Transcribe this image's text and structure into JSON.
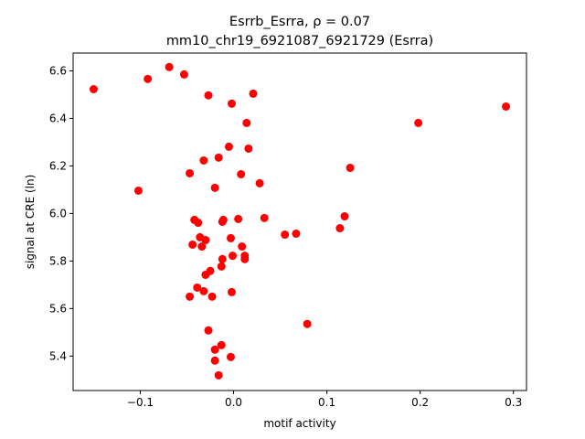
{
  "chart_data": {
    "type": "scatter",
    "title_line1": "Esrrb_Esrra, ρ = 0.07",
    "title_line2": "mm10_chr19_6921087_6921729 (Esrra)",
    "xlabel": "motif activity",
    "ylabel": "signal at CRE (ln)",
    "xlim": [
      -0.172,
      0.314
    ],
    "ylim": [
      5.255,
      6.675
    ],
    "x_ticks": [
      -0.1,
      0.0,
      0.1,
      0.2,
      0.3
    ],
    "x_tick_labels": [
      "−0.1",
      "0.0",
      "0.1",
      "0.2",
      "0.3"
    ],
    "y_ticks": [
      5.4,
      5.6,
      5.8,
      6.0,
      6.2,
      6.4,
      6.6
    ],
    "y_tick_labels": [
      "5.4",
      "5.6",
      "5.8",
      "6.0",
      "6.2",
      "6.4",
      "6.6"
    ],
    "grid": false,
    "marker_color": "#ff0000",
    "points": [
      {
        "x": -0.15,
        "y": 6.523
      },
      {
        "x": -0.092,
        "y": 6.566
      },
      {
        "x": -0.069,
        "y": 6.616
      },
      {
        "x": -0.053,
        "y": 6.585
      },
      {
        "x": -0.027,
        "y": 6.497
      },
      {
        "x": -0.002,
        "y": 6.462
      },
      {
        "x": 0.021,
        "y": 6.504
      },
      {
        "x": 0.014,
        "y": 6.381
      },
      {
        "x": 0.198,
        "y": 6.381
      },
      {
        "x": 0.292,
        "y": 6.45
      },
      {
        "x": -0.005,
        "y": 6.281
      },
      {
        "x": 0.016,
        "y": 6.273
      },
      {
        "x": -0.032,
        "y": 6.223
      },
      {
        "x": -0.016,
        "y": 6.235
      },
      {
        "x": -0.047,
        "y": 6.169
      },
      {
        "x": 0.008,
        "y": 6.165
      },
      {
        "x": 0.125,
        "y": 6.192
      },
      {
        "x": -0.102,
        "y": 6.096
      },
      {
        "x": -0.02,
        "y": 6.108
      },
      {
        "x": 0.028,
        "y": 6.127
      },
      {
        "x": -0.042,
        "y": 5.973
      },
      {
        "x": -0.038,
        "y": 5.961
      },
      {
        "x": -0.011,
        "y": 5.973
      },
      {
        "x": -0.012,
        "y": 5.965
      },
      {
        "x": 0.005,
        "y": 5.977
      },
      {
        "x": 0.033,
        "y": 5.981
      },
      {
        "x": 0.119,
        "y": 5.988
      },
      {
        "x": 0.114,
        "y": 5.938
      },
      {
        "x": 0.055,
        "y": 5.911
      },
      {
        "x": 0.067,
        "y": 5.915
      },
      {
        "x": -0.036,
        "y": 5.9
      },
      {
        "x": -0.03,
        "y": 5.888
      },
      {
        "x": -0.044,
        "y": 5.869
      },
      {
        "x": -0.034,
        "y": 5.861
      },
      {
        "x": -0.003,
        "y": 5.896
      },
      {
        "x": 0.009,
        "y": 5.861
      },
      {
        "x": 0.012,
        "y": 5.822
      },
      {
        "x": 0.012,
        "y": 5.808
      },
      {
        "x": -0.001,
        "y": 5.822
      },
      {
        "x": -0.012,
        "y": 5.808
      },
      {
        "x": -0.013,
        "y": 5.777
      },
      {
        "x": -0.025,
        "y": 5.758
      },
      {
        "x": -0.03,
        "y": 5.742
      },
      {
        "x": -0.039,
        "y": 5.688
      },
      {
        "x": -0.032,
        "y": 5.673
      },
      {
        "x": -0.047,
        "y": 5.65
      },
      {
        "x": -0.023,
        "y": 5.65
      },
      {
        "x": -0.002,
        "y": 5.669
      },
      {
        "x": -0.027,
        "y": 5.508
      },
      {
        "x": 0.079,
        "y": 5.535
      },
      {
        "x": -0.013,
        "y": 5.446
      },
      {
        "x": -0.02,
        "y": 5.427
      },
      {
        "x": -0.003,
        "y": 5.396
      },
      {
        "x": -0.02,
        "y": 5.381
      },
      {
        "x": -0.016,
        "y": 5.319
      }
    ]
  }
}
